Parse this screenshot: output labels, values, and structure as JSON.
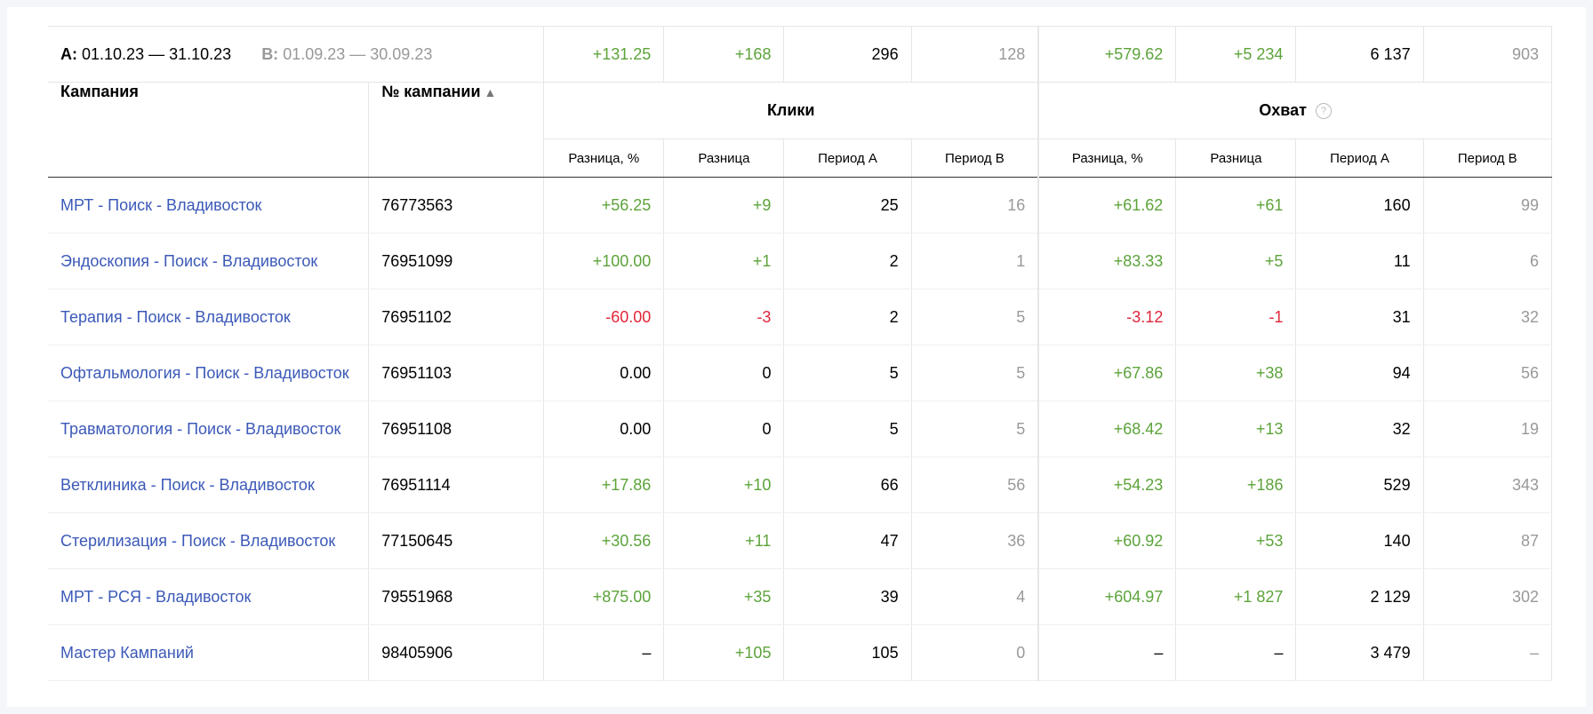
{
  "periods": {
    "a_label": "A:",
    "a_range": "01.10.23 — 31.10.23",
    "b_label": "B:",
    "b_range": "01.09.23 — 30.09.23"
  },
  "totals": {
    "clicks": {
      "diff_pct": "+131.25",
      "diff": "+168",
      "period_a": "296",
      "period_b": "128"
    },
    "reach": {
      "diff_pct": "+579.62",
      "diff": "+5 234",
      "period_a": "6 137",
      "period_b": "903"
    }
  },
  "headers": {
    "campaign": "Кампания",
    "campaign_number": "№ кампании",
    "sort_arrow": "▲",
    "clicks_group": "Клики",
    "reach_group": "Охват",
    "help_icon_glyph": "?",
    "diff_pct": "Разница, %",
    "diff": "Разница",
    "period_a": "Период А",
    "period_b": "Период В"
  },
  "colors": {
    "positive": "#5ca33a",
    "negative": "#e0263a",
    "link": "#3b59b8",
    "muted": "#999999"
  },
  "rows": [
    {
      "name": "МРТ - Поиск - Владивосток",
      "number": "76773563",
      "clicks": {
        "diff_pct": "+56.25",
        "diff": "+9",
        "period_a": "25",
        "period_b": "16"
      },
      "reach": {
        "diff_pct": "+61.62",
        "diff": "+61",
        "period_a": "160",
        "period_b": "99"
      }
    },
    {
      "name": "Эндоскопия - Поиск - Владивосток",
      "number": "76951099",
      "clicks": {
        "diff_pct": "+100.00",
        "diff": "+1",
        "period_a": "2",
        "period_b": "1"
      },
      "reach": {
        "diff_pct": "+83.33",
        "diff": "+5",
        "period_a": "11",
        "period_b": "6"
      }
    },
    {
      "name": "Терапия - Поиск - Владивосток",
      "number": "76951102",
      "clicks": {
        "diff_pct": "-60.00",
        "diff": "-3",
        "period_a": "2",
        "period_b": "5"
      },
      "reach": {
        "diff_pct": "-3.12",
        "diff": "-1",
        "period_a": "31",
        "period_b": "32"
      }
    },
    {
      "name": "Офтальмология - Поиск - Владивосток",
      "number": "76951103",
      "clicks": {
        "diff_pct": "0.00",
        "diff": "0",
        "period_a": "5",
        "period_b": "5"
      },
      "reach": {
        "diff_pct": "+67.86",
        "diff": "+38",
        "period_a": "94",
        "period_b": "56"
      }
    },
    {
      "name": "Травматология - Поиск - Владивосток",
      "number": "76951108",
      "clicks": {
        "diff_pct": "0.00",
        "diff": "0",
        "period_a": "5",
        "period_b": "5"
      },
      "reach": {
        "diff_pct": "+68.42",
        "diff": "+13",
        "period_a": "32",
        "period_b": "19"
      }
    },
    {
      "name": "Ветклиника - Поиск - Владивосток",
      "number": "76951114",
      "clicks": {
        "diff_pct": "+17.86",
        "diff": "+10",
        "period_a": "66",
        "period_b": "56"
      },
      "reach": {
        "diff_pct": "+54.23",
        "diff": "+186",
        "period_a": "529",
        "period_b": "343"
      }
    },
    {
      "name": "Стерилизация - Поиск - Владивосток",
      "number": "77150645",
      "clicks": {
        "diff_pct": "+30.56",
        "diff": "+11",
        "period_a": "47",
        "period_b": "36"
      },
      "reach": {
        "diff_pct": "+60.92",
        "diff": "+53",
        "period_a": "140",
        "period_b": "87"
      }
    },
    {
      "name": "МРТ - РСЯ - Владивосток",
      "number": "79551968",
      "clicks": {
        "diff_pct": "+875.00",
        "diff": "+35",
        "period_a": "39",
        "period_b": "4"
      },
      "reach": {
        "diff_pct": "+604.97",
        "diff": "+1 827",
        "period_a": "2 129",
        "period_b": "302"
      }
    },
    {
      "name": "Мастер Кампаний",
      "number": "98405906",
      "clicks": {
        "diff_pct": "–",
        "diff": "+105",
        "period_a": "105",
        "period_b": "0"
      },
      "reach": {
        "diff_pct": "–",
        "diff": "–",
        "period_a": "3 479",
        "period_b": "–"
      }
    }
  ]
}
